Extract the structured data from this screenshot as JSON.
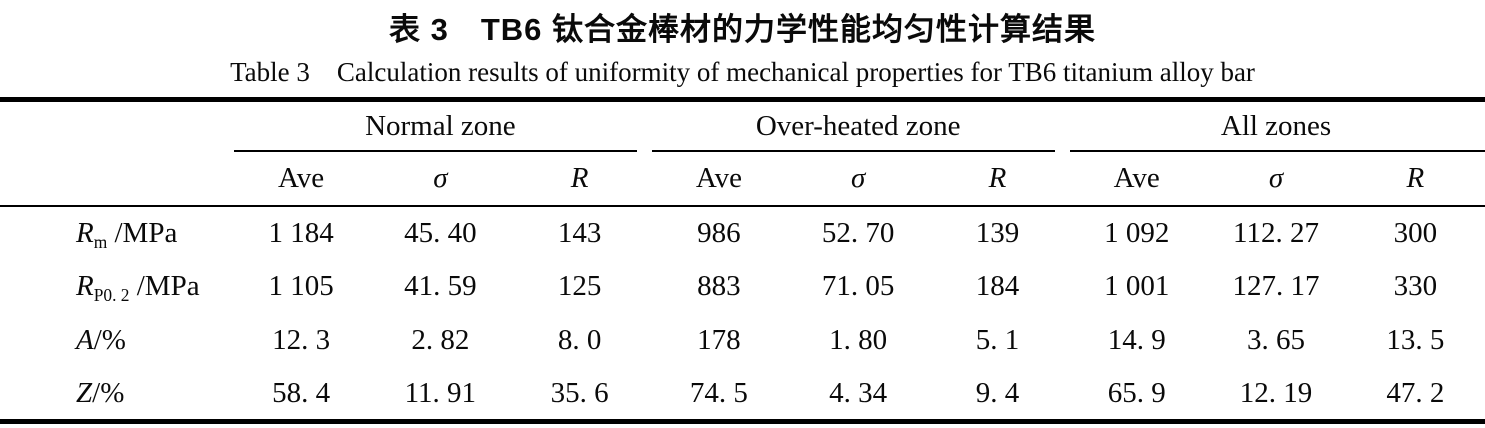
{
  "caption": {
    "zh": "表 3　TB6 钛合金棒材的力学性能均匀性计算结果",
    "en": "Table 3　Calculation results of uniformity of mechanical properties for TB6 titanium alloy bar"
  },
  "table": {
    "groups": [
      {
        "label": "Normal zone",
        "cols": [
          "Ave",
          "σ",
          "R"
        ]
      },
      {
        "label": "Over-heated zone",
        "cols": [
          "Ave",
          "σ",
          "R"
        ]
      },
      {
        "label": "All zones",
        "cols": [
          "Ave",
          "σ",
          "R"
        ]
      }
    ],
    "rows": [
      {
        "sym": "R",
        "sub": "m",
        "unit": " /MPa",
        "cells": [
          "1 184",
          "45. 40",
          "143",
          "986",
          "52. 70",
          "139",
          "1 092",
          "112. 27",
          "300"
        ]
      },
      {
        "sym": "R",
        "sub": "P0. 2",
        "unit": " /MPa",
        "cells": [
          "1 105",
          "41. 59",
          "125",
          "883",
          "71. 05",
          "184",
          "1 001",
          "127. 17",
          "330"
        ]
      },
      {
        "sym": "A",
        "sub": "",
        "unit": "/%",
        "cells": [
          "12. 3",
          "2. 82",
          "8. 0",
          "178",
          "1. 80",
          "5. 1",
          "14. 9",
          "3. 65",
          "13. 5"
        ]
      },
      {
        "sym": "Z",
        "sub": "",
        "unit": "/%",
        "cells": [
          "58. 4",
          "11. 91",
          "35. 6",
          "74. 5",
          "4. 34",
          "9. 4",
          "65. 9",
          "12. 19",
          "47. 2"
        ]
      }
    ]
  }
}
